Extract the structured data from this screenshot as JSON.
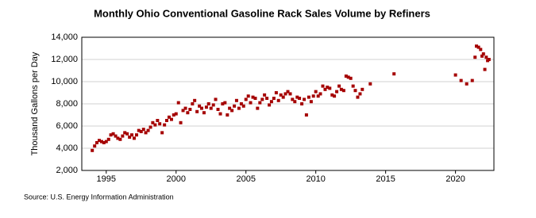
{
  "chart_data": {
    "type": "scatter",
    "title": "Monthly Ohio Conventional Gasoline Rack Sales Volume by Refiners",
    "y_label": "Thousand Gallons per Day",
    "source": "Source: U.S. Energy Information Administration",
    "color": "#a50000",
    "grid": true,
    "xlim": [
      1993.25,
      2022.75
    ],
    "xticks": [
      1995,
      2000,
      2005,
      2010,
      2015,
      2020
    ],
    "ylim": [
      2000,
      14000
    ],
    "yticks": [
      {
        "value": 2000,
        "label": "2,000"
      },
      {
        "value": 4000,
        "label": "4,000"
      },
      {
        "value": 6000,
        "label": "6,000"
      },
      {
        "value": 8000,
        "label": "8,000"
      },
      {
        "value": 10000,
        "label": "10,000"
      },
      {
        "value": 12000,
        "label": "12,000"
      },
      {
        "value": 14000,
        "label": "14,000"
      }
    ],
    "x": [
      1994,
      1994.17,
      1994.33,
      1994.5,
      1994.67,
      1994.83,
      1995,
      1995.17,
      1995.33,
      1995.5,
      1995.67,
      1995.83,
      1996,
      1996.17,
      1996.33,
      1996.5,
      1996.67,
      1996.83,
      1997,
      1997.17,
      1997.33,
      1997.5,
      1997.67,
      1997.83,
      1998,
      1998.17,
      1998.33,
      1998.5,
      1998.67,
      1998.83,
      1999,
      1999.17,
      1999.33,
      1999.5,
      1999.67,
      1999.83,
      2000,
      2000.17,
      2000.33,
      2000.5,
      2000.67,
      2000.83,
      2001,
      2001.17,
      2001.33,
      2001.5,
      2001.67,
      2001.83,
      2002,
      2002.17,
      2002.33,
      2002.5,
      2002.67,
      2002.83,
      2003,
      2003.17,
      2003.33,
      2003.5,
      2003.67,
      2003.83,
      2004,
      2004.17,
      2004.33,
      2004.5,
      2004.67,
      2004.83,
      2005,
      2005.17,
      2005.33,
      2005.5,
      2005.67,
      2005.83,
      2006,
      2006.17,
      2006.33,
      2006.5,
      2006.67,
      2006.83,
      2007,
      2007.17,
      2007.33,
      2007.5,
      2007.67,
      2007.83,
      2008,
      2008.17,
      2008.33,
      2008.5,
      2008.67,
      2008.83,
      2009,
      2009.17,
      2009.33,
      2009.5,
      2009.67,
      2009.83,
      2010,
      2010.17,
      2010.33,
      2010.5,
      2010.67,
      2010.83,
      2011,
      2011.17,
      2011.33,
      2011.5,
      2011.67,
      2011.83,
      2012,
      2012.17,
      2012.33,
      2012.5,
      2012.67,
      2012.83,
      2013,
      2013.17,
      2013.33,
      2013.9,
      2015.6,
      2020,
      2020.4,
      2020.8,
      2021.2,
      2021.4,
      2021.5,
      2021.65,
      2021.8,
      2021.9,
      2022,
      2022.1,
      2022.2,
      2022.3,
      2022.4
    ],
    "values": [
      3800,
      4200,
      4500,
      4700,
      4600,
      4500,
      4600,
      4800,
      5200,
      5300,
      5100,
      4900,
      4800,
      5100,
      5400,
      5300,
      5000,
      5200,
      4900,
      5200,
      5600,
      5500,
      5700,
      5400,
      5600,
      5900,
      6300,
      6100,
      6500,
      6200,
      5400,
      6100,
      6500,
      6800,
      6600,
      7000,
      7100,
      8100,
      6300,
      7400,
      7600,
      7200,
      7500,
      8000,
      8300,
      7300,
      7800,
      7600,
      7200,
      7700,
      8000,
      7600,
      7900,
      8400,
      7500,
      7100,
      8000,
      8100,
      7000,
      7600,
      7400,
      7800,
      8300,
      7600,
      8000,
      7800,
      8400,
      8700,
      8100,
      8600,
      8500,
      7600,
      8100,
      8400,
      8800,
      8500,
      7900,
      8200,
      8500,
      9000,
      8300,
      8800,
      8600,
      8900,
      9100,
      8900,
      8400,
      8200,
      8600,
      8500,
      8000,
      8400,
      7000,
      8600,
      8200,
      8700,
      9100,
      8700,
      8900,
      9600,
      9300,
      9500,
      9400,
      8800,
      8700,
      9100,
      9600,
      9300,
      9200,
      10500,
      10400,
      10300,
      9600,
      9200,
      8600,
      8900,
      9300,
      9800,
      10700,
      10600,
      10100,
      9800,
      10100,
      12200,
      13200,
      13100,
      12900,
      12300,
      12500,
      11100,
      12200,
      11900,
      12000
    ]
  }
}
